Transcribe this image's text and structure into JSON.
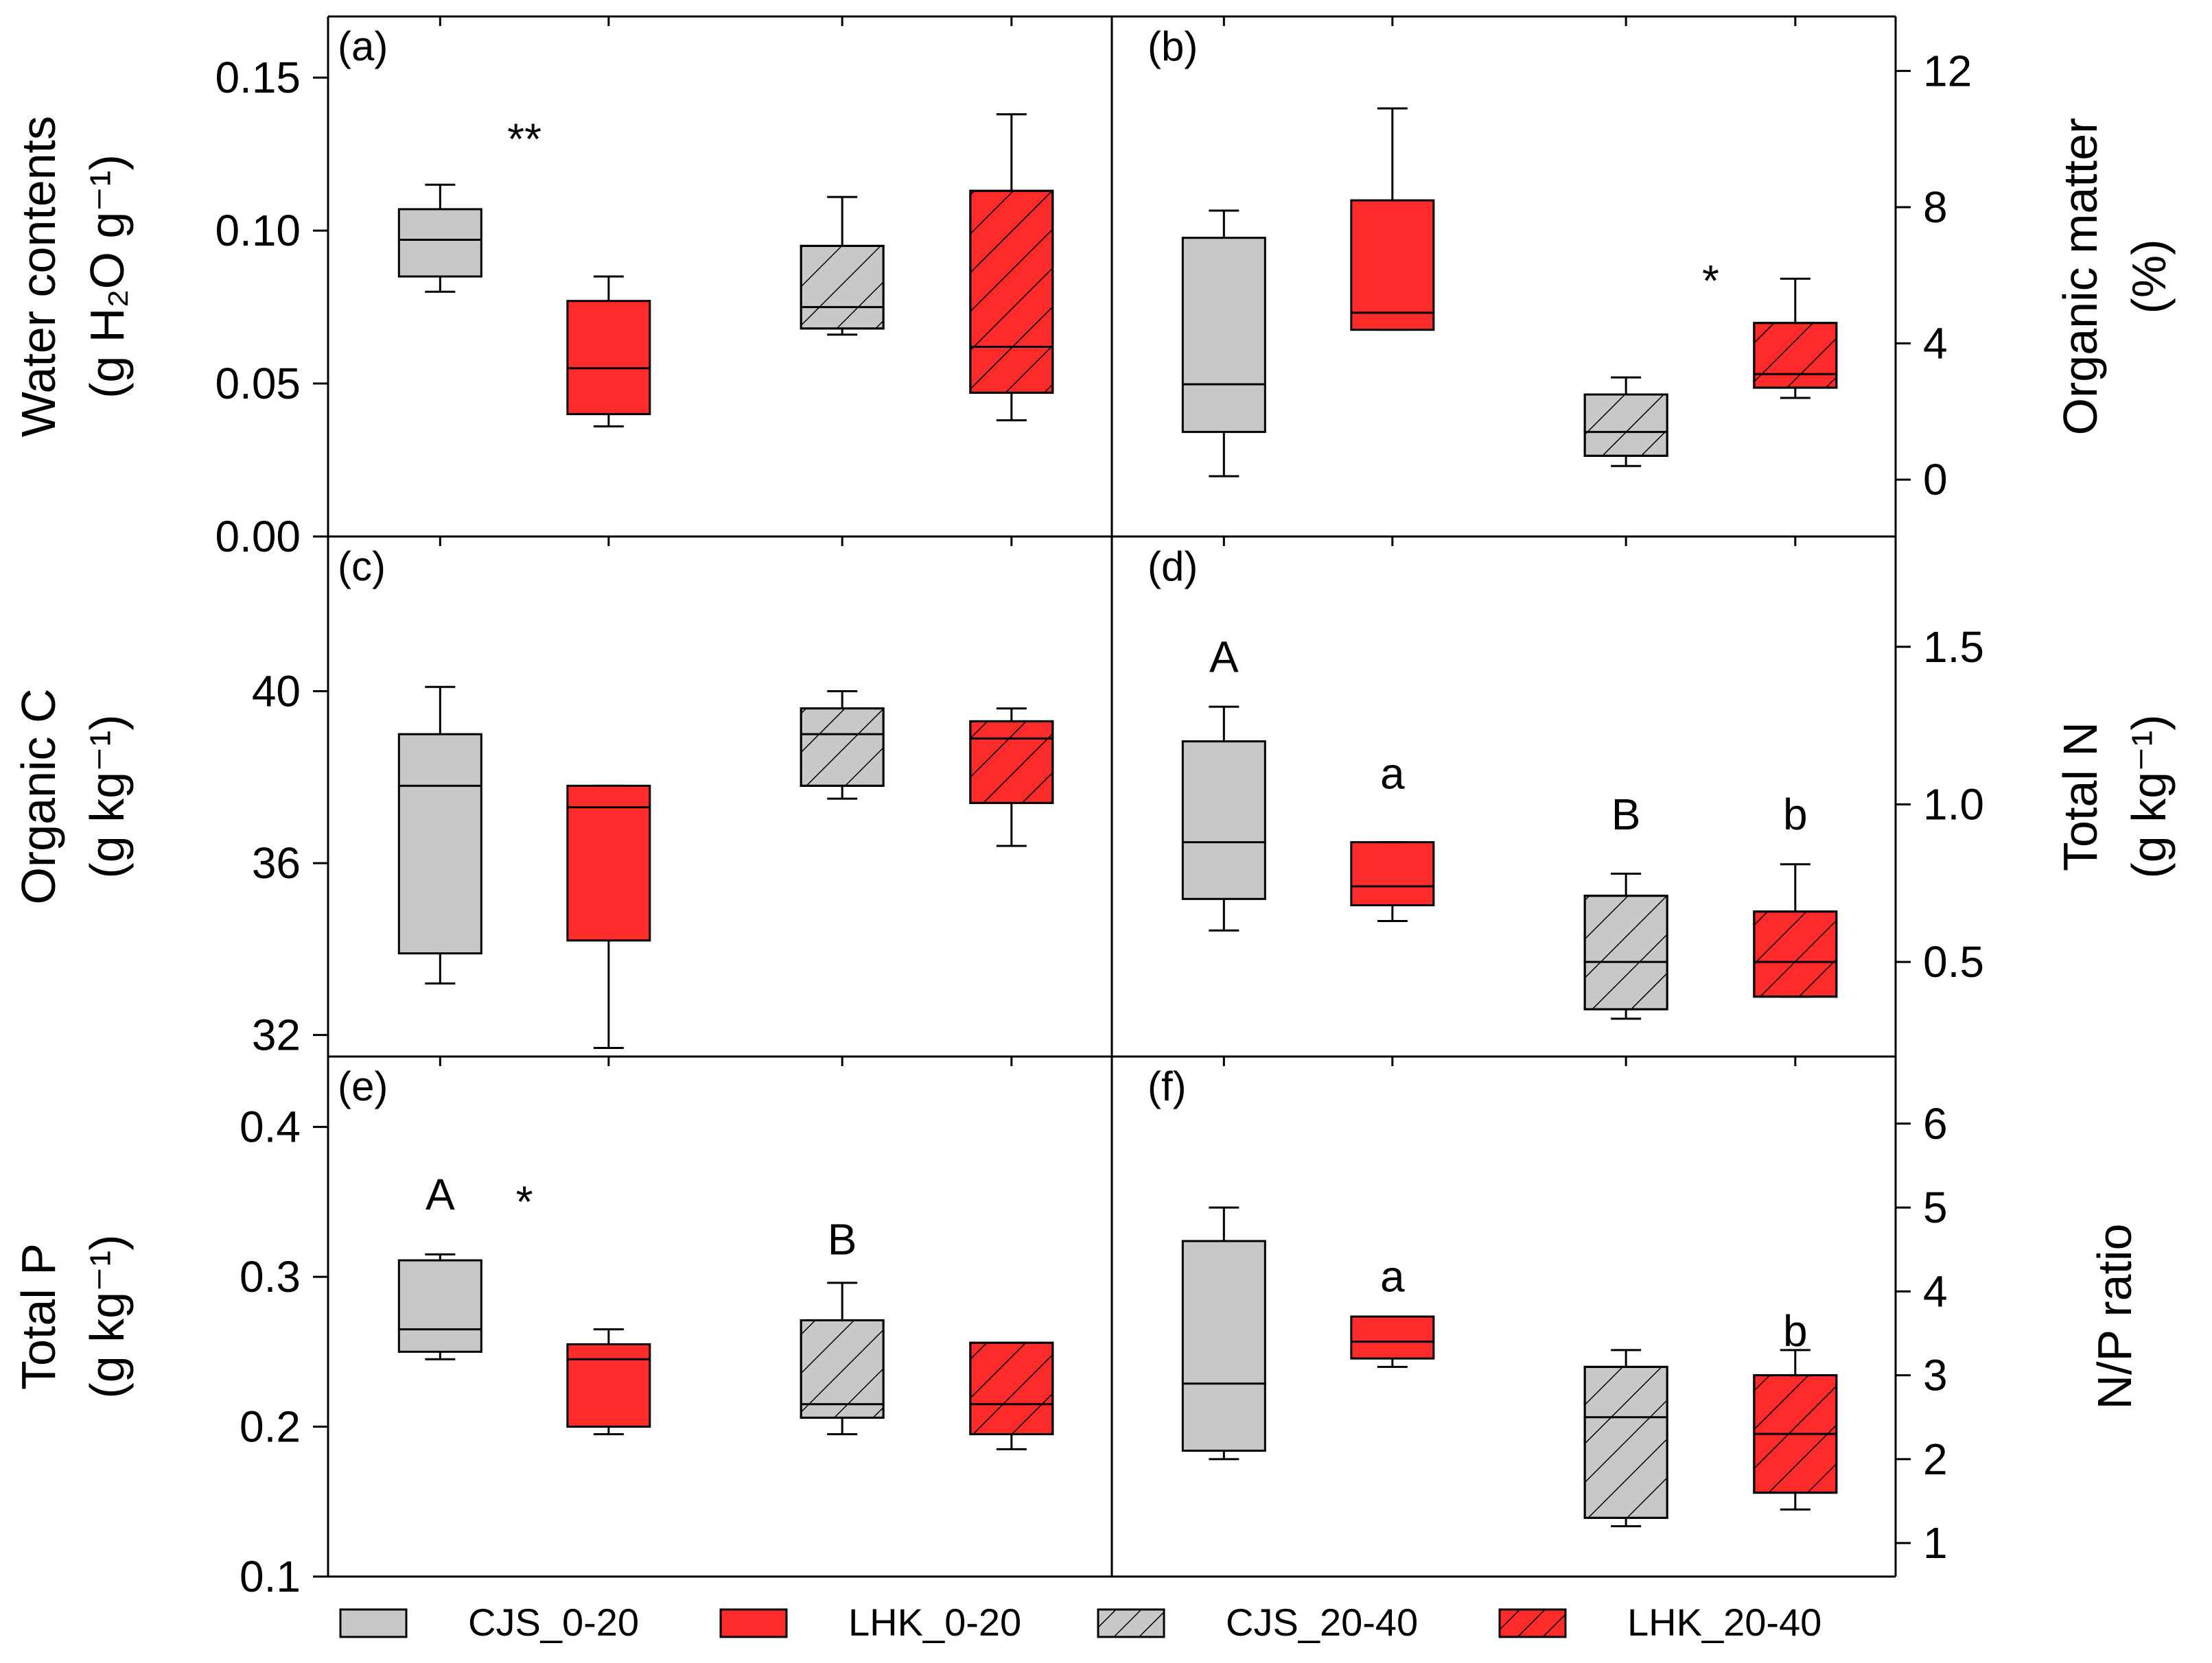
{
  "colors": {
    "cjs": "#c8c8c8",
    "lhk": "#ff2a2a",
    "stroke": "#000000",
    "hatch": "#000000"
  },
  "legend": [
    {
      "name": "CJS_0-20",
      "color": "#c8c8c8",
      "hatch": false
    },
    {
      "name": "LHK_0-20",
      "color": "#ff2a2a",
      "hatch": false
    },
    {
      "name": "CJS_20-40",
      "color": "#c8c8c8",
      "hatch": true
    },
    {
      "name": "LHK_20-40",
      "color": "#ff2a2a",
      "hatch": true
    }
  ],
  "axes": {
    "left": [
      {
        "label_lines": [
          "Water contents",
          "(g H₂O g⁻¹)"
        ],
        "ticks": [
          "0.00",
          "0.05",
          "0.10",
          "0.15"
        ]
      },
      {
        "label_lines": [
          "Organic C",
          "(g kg⁻¹)"
        ],
        "ticks": [
          "32",
          "36",
          "40"
        ]
      },
      {
        "label_lines": [
          "Total P",
          "(g kg⁻¹)"
        ],
        "ticks": [
          "0.1",
          "0.2",
          "0.3",
          "0.4"
        ]
      }
    ],
    "right": [
      {
        "label_lines": [
          "Organic matter",
          "(%)"
        ],
        "ticks": [
          "0",
          "4",
          "8",
          "12"
        ]
      },
      {
        "label_lines": [
          "Total N",
          "(g kg⁻¹)"
        ],
        "ticks": [
          "0.5",
          "1.0",
          "1.5"
        ]
      },
      {
        "label_lines": [
          "N/P ratio"
        ],
        "ticks": [
          "1",
          "2",
          "3",
          "4",
          "5",
          "6"
        ]
      }
    ]
  },
  "chart_data": [
    {
      "type": "box",
      "panel": "(a)",
      "ylabel": "Water contents (g H2O g-1)",
      "ylim": [
        0,
        0.17
      ],
      "series": [
        {
          "name": "CJS_0-20",
          "whisker_low": 0.08,
          "q1": 0.085,
          "median": 0.097,
          "q3": 0.107,
          "whisker_high": 0.115
        },
        {
          "name": "LHK_0-20",
          "whisker_low": 0.036,
          "q1": 0.04,
          "median": 0.055,
          "q3": 0.077,
          "whisker_high": 0.085
        },
        {
          "name": "CJS_20-40",
          "whisker_low": 0.066,
          "q1": 0.068,
          "median": 0.075,
          "q3": 0.095,
          "whisker_high": 0.111
        },
        {
          "name": "LHK_20-40",
          "whisker_low": 0.038,
          "q1": 0.047,
          "median": 0.062,
          "q3": 0.113,
          "whisker_high": 0.138
        }
      ],
      "annotations": [
        {
          "text": "**",
          "x": 1.5,
          "y": 0.125
        }
      ]
    },
    {
      "type": "box",
      "panel": "(b)",
      "ylabel": "Organic matter (%)",
      "ylim": [
        -1.67,
        13.6
      ],
      "series": [
        {
          "name": "CJS_0-20",
          "whisker_low": 0.1,
          "q1": 1.4,
          "median": 2.8,
          "q3": 7.1,
          "whisker_high": 7.9
        },
        {
          "name": "LHK_0-20",
          "whisker_low": 4.4,
          "q1": 4.4,
          "median": 4.9,
          "q3": 8.2,
          "whisker_high": 10.9
        },
        {
          "name": "CJS_20-40",
          "whisker_low": 0.4,
          "q1": 0.7,
          "median": 1.4,
          "q3": 2.5,
          "whisker_high": 3.0
        },
        {
          "name": "LHK_20-40",
          "whisker_low": 2.4,
          "q1": 2.7,
          "median": 3.1,
          "q3": 4.6,
          "whisker_high": 5.9
        }
      ],
      "annotations": [
        {
          "text": "*",
          "x": 3.5,
          "y": 5.4
        }
      ]
    },
    {
      "type": "box",
      "panel": "(c)",
      "ylabel": "Organic C (g kg-1)",
      "ylim": [
        31.5,
        43.6
      ],
      "series": [
        {
          "name": "CJS_0-20",
          "whisker_low": 33.2,
          "q1": 33.9,
          "median": 37.8,
          "q3": 39.0,
          "whisker_high": 40.1
        },
        {
          "name": "LHK_0-20",
          "whisker_low": 31.7,
          "q1": 34.2,
          "median": 37.3,
          "q3": 37.8,
          "whisker_high": 37.8
        },
        {
          "name": "CJS_20-40",
          "whisker_low": 37.5,
          "q1": 37.8,
          "median": 39.0,
          "q3": 39.6,
          "whisker_high": 40.0
        },
        {
          "name": "LHK_20-40",
          "whisker_low": 36.4,
          "q1": 37.4,
          "median": 38.9,
          "q3": 39.3,
          "whisker_high": 39.6
        }
      ],
      "annotations": []
    },
    {
      "type": "box",
      "panel": "(d)",
      "ylabel": "Total N (g kg-1)",
      "ylim": [
        0.2,
        1.85
      ],
      "series": [
        {
          "name": "CJS_0-20",
          "whisker_low": 0.6,
          "q1": 0.7,
          "median": 0.88,
          "q3": 1.2,
          "whisker_high": 1.31
        },
        {
          "name": "LHK_0-20",
          "whisker_low": 0.63,
          "q1": 0.68,
          "median": 0.74,
          "q3": 0.88,
          "whisker_high": 0.88
        },
        {
          "name": "CJS_20-40",
          "whisker_low": 0.32,
          "q1": 0.35,
          "median": 0.5,
          "q3": 0.71,
          "whisker_high": 0.78
        },
        {
          "name": "LHK_20-40",
          "whisker_low": 0.39,
          "q1": 0.39,
          "median": 0.5,
          "q3": 0.66,
          "whisker_high": 0.81
        }
      ],
      "annotations": [
        {
          "text": "A",
          "x": 1,
          "y": 1.42
        },
        {
          "text": "a",
          "x": 2,
          "y": 1.05
        },
        {
          "text": "B",
          "x": 3,
          "y": 0.92
        },
        {
          "text": "b",
          "x": 4,
          "y": 0.92
        }
      ]
    },
    {
      "type": "box",
      "panel": "(e)",
      "ylabel": "Total P (g kg-1)",
      "ylim": [
        0.1,
        0.447
      ],
      "series": [
        {
          "name": "CJS_0-20",
          "whisker_low": 0.245,
          "q1": 0.25,
          "median": 0.265,
          "q3": 0.311,
          "whisker_high": 0.315
        },
        {
          "name": "LHK_0-20",
          "whisker_low": 0.195,
          "q1": 0.2,
          "median": 0.245,
          "q3": 0.255,
          "whisker_high": 0.265
        },
        {
          "name": "CJS_20-40",
          "whisker_low": 0.195,
          "q1": 0.206,
          "median": 0.215,
          "q3": 0.271,
          "whisker_high": 0.296
        },
        {
          "name": "LHK_20-40",
          "whisker_low": 0.185,
          "q1": 0.195,
          "median": 0.215,
          "q3": 0.256,
          "whisker_high": 0.256
        }
      ],
      "annotations": [
        {
          "text": "A",
          "x": 1,
          "y": 0.345
        },
        {
          "text": "*",
          "x": 1.5,
          "y": 0.34
        },
        {
          "text": "B",
          "x": 3,
          "y": 0.315
        }
      ]
    },
    {
      "type": "box",
      "panel": "(f)",
      "ylabel": "N/P ratio",
      "ylim": [
        0.6,
        6.8
      ],
      "series": [
        {
          "name": "CJS_0-20",
          "whisker_low": 2.0,
          "q1": 2.1,
          "median": 2.9,
          "q3": 4.6,
          "whisker_high": 5.0
        },
        {
          "name": "LHK_0-20",
          "whisker_low": 3.1,
          "q1": 3.2,
          "median": 3.4,
          "q3": 3.7,
          "whisker_high": 3.7
        },
        {
          "name": "CJS_20-40",
          "whisker_low": 1.2,
          "q1": 1.3,
          "median": 2.5,
          "q3": 3.1,
          "whisker_high": 3.3
        },
        {
          "name": "LHK_20-40",
          "whisker_low": 1.4,
          "q1": 1.6,
          "median": 2.3,
          "q3": 3.0,
          "whisker_high": 3.3
        }
      ],
      "annotations": [
        {
          "text": "a",
          "x": 2,
          "y": 4.0
        },
        {
          "text": "b",
          "x": 4,
          "y": 3.35
        }
      ]
    }
  ]
}
